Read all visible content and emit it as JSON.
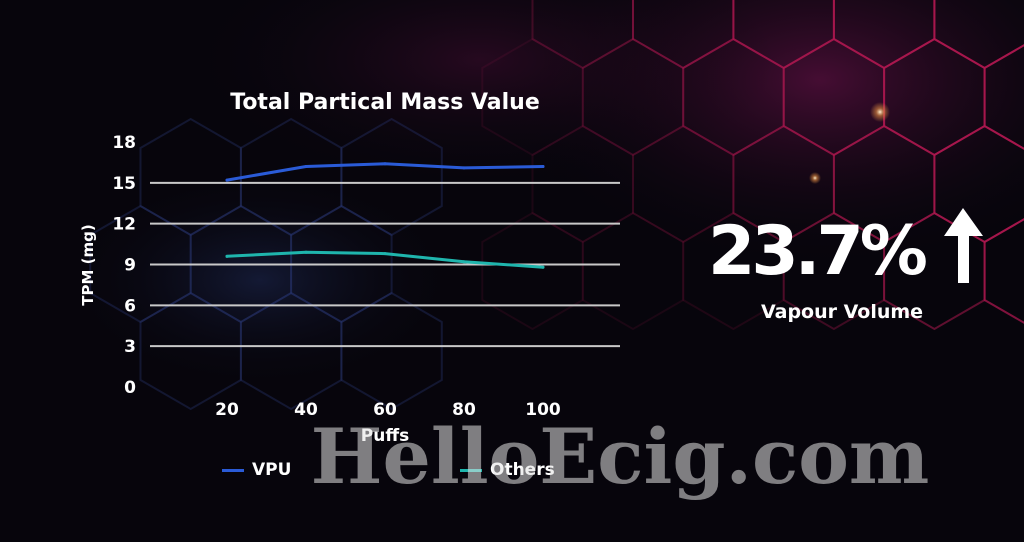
{
  "chart_data": {
    "type": "line",
    "title": "Total Partical Mass Value",
    "xlabel": "Puffs",
    "ylabel": "TPM (mg)",
    "x": [
      20,
      40,
      60,
      80,
      100
    ],
    "ylim": [
      0,
      18
    ],
    "yticks": [
      0,
      3,
      6,
      9,
      12,
      15,
      18
    ],
    "grid": true,
    "legend": "bottom",
    "series": [
      {
        "name": "VPU",
        "color": "#2a5bd7",
        "values": [
          15.2,
          16.2,
          16.4,
          16.1,
          16.2
        ]
      },
      {
        "name": "Others",
        "color": "#1fb5ad",
        "values": [
          9.6,
          9.9,
          9.8,
          9.2,
          8.8
        ]
      }
    ]
  },
  "stat": {
    "value": "23.7%",
    "label": "Vapour Volume",
    "arrow_icon": "up-arrow-icon"
  },
  "watermark": "HelloEcig.com",
  "colors": {
    "accent": "#c0184f",
    "background": "#07050c"
  }
}
